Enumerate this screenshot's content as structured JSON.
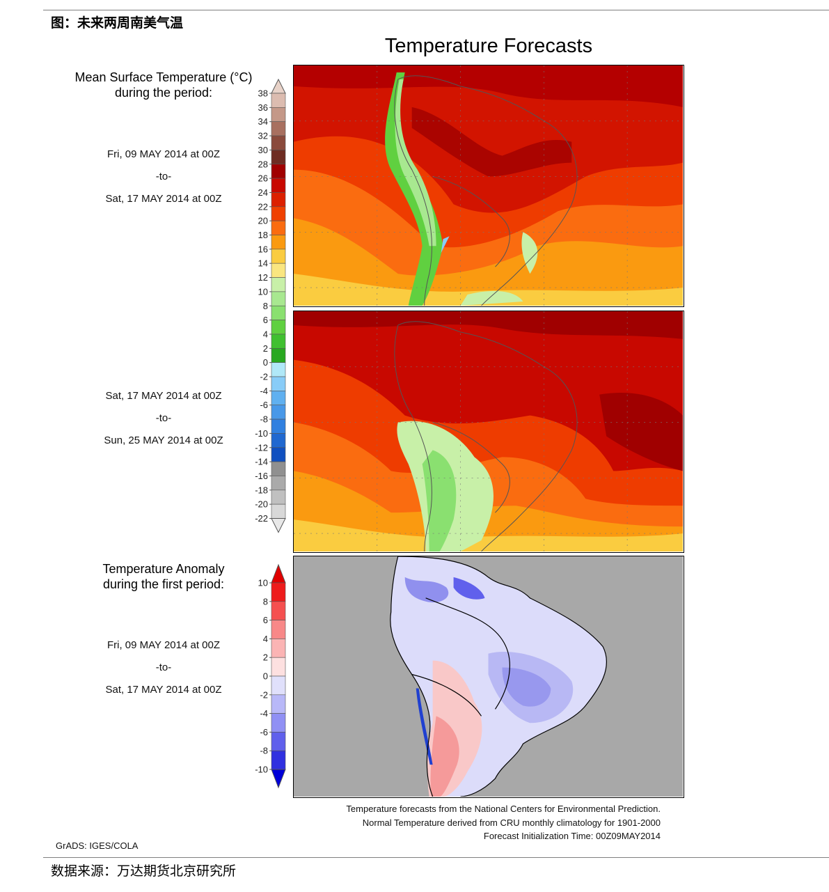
{
  "header": {
    "figure_title": "图：未来两周南美气温",
    "source": "数据来源：万达期货北京研究所"
  },
  "chart": {
    "title": "Temperature Forecasts",
    "mean_panel": {
      "label_line1": "Mean Surface Temperature (°C)",
      "label_line2": "during the period:",
      "period1": {
        "start": "Fri, 09 MAY 2014 at 00Z",
        "sep": "-to-",
        "end": "Sat, 17 MAY 2014 at 00Z"
      },
      "period2": {
        "start": "Sat, 17 MAY 2014 at 00Z",
        "sep": "-to-",
        "end": "Sun, 25 MAY 2014 at 00Z"
      }
    },
    "anomaly_panel": {
      "label_line1": "Temperature Anomaly",
      "label_line2": "during the first period:",
      "period": {
        "start": "Fri, 09 MAY 2014 at 00Z",
        "sep": "-to-",
        "end": "Sat, 17 MAY 2014 at 00Z"
      }
    },
    "credits": {
      "line1": "Temperature forecasts from the National Centers for Environmental Prediction.",
      "line2": "Normal Temperature derived from CRU monthly climatology for 1901-2000",
      "line3": "Forecast Initialization Time: 00Z09MAY2014"
    },
    "grads": "GrADS: IGES/COLA"
  },
  "chart_data": [
    {
      "type": "heatmap",
      "legend": {
        "ticks": [
          "38",
          "36",
          "34",
          "32",
          "30",
          "28",
          "26",
          "24",
          "22",
          "20",
          "18",
          "16",
          "14",
          "12",
          "10",
          "8",
          "6",
          "4",
          "2",
          "0",
          "-2",
          "-4",
          "-6",
          "-8",
          "-10",
          "-12",
          "-14",
          "-16",
          "-18",
          "-20",
          "-22"
        ],
        "colors": [
          "#dcbcb0",
          "#c49888",
          "#a87060",
          "#8a4a3c",
          "#6e2c22",
          "#a00000",
          "#c80800",
          "#dc2000",
          "#f04000",
          "#fa6c10",
          "#fa9a10",
          "#facc40",
          "#fae680",
          "#c8f0a8",
          "#a8e890",
          "#8ae070",
          "#60d040",
          "#40c030",
          "#28a820",
          "#b0e8f8",
          "#88ccf8",
          "#60b0f0",
          "#4898e8",
          "#3080e0",
          "#2068d0",
          "#1050c0",
          "#909090",
          "#aaaaaa",
          "#c0c0c0",
          "#d8d8d8"
        ],
        "top_arrow_color": "#e8d2c8",
        "bottom_arrow_color": "#e8e8e8"
      }
    },
    {
      "type": "heatmap",
      "legend": {
        "ticks": [
          "10",
          "8",
          "6",
          "4",
          "2",
          "0",
          "-2",
          "-4",
          "-6",
          "-8",
          "-10"
        ],
        "colors": [
          "#ee1c1c",
          "#f55050",
          "#f88888",
          "#fbb4b4",
          "#fde0e0",
          "#e0e0fb",
          "#b8b8f8",
          "#9090f4",
          "#6060ec",
          "#3030e0"
        ],
        "top_arrow_color": "#e00000",
        "bottom_arrow_color": "#0000d8"
      }
    }
  ]
}
